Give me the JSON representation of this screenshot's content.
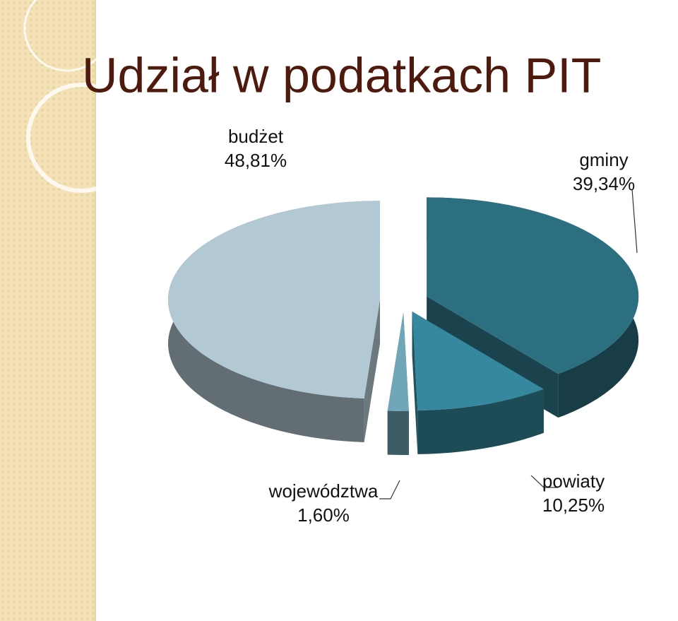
{
  "chart_data": {
    "type": "pie3d",
    "title": "Udział w podatkach PIT",
    "categories": [
      "gminy",
      "powiaty",
      "województwa",
      "budżet"
    ],
    "values": [
      39.34,
      10.25,
      1.6,
      48.81
    ],
    "value_labels": [
      "39,34%",
      "10,25%",
      "1,60%",
      "48,81%"
    ],
    "colors": [
      "#2b6f80",
      "#35889d",
      "#6fa7b8",
      "#b2c8d2"
    ]
  }
}
